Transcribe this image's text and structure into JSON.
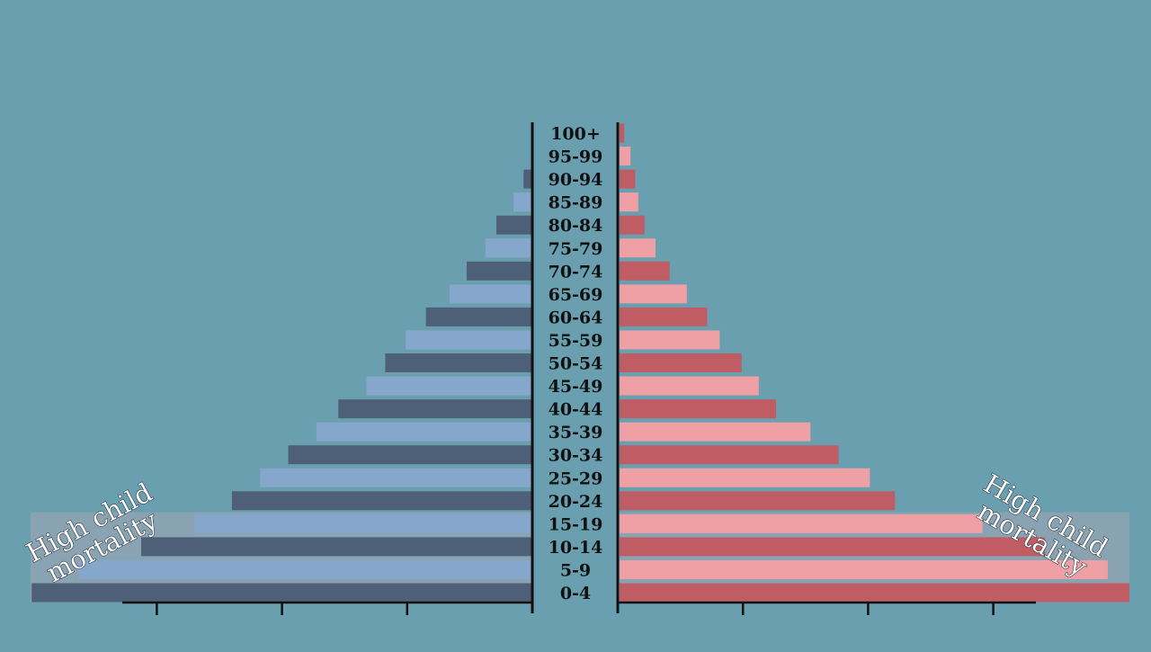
{
  "chart_data": {
    "type": "bar",
    "orientation": "horizontal",
    "layout": "population-pyramid",
    "title": "",
    "xlabel": "",
    "ylabel": "",
    "categories": [
      "0-4",
      "5-9",
      "10-14",
      "15-19",
      "20-24",
      "25-29",
      "30-34",
      "35-39",
      "40-44",
      "45-49",
      "50-54",
      "55-59",
      "60-64",
      "65-69",
      "70-74",
      "75-79",
      "80-84",
      "85-89",
      "90-94",
      "95-99",
      "100+"
    ],
    "series": [
      {
        "side": "left",
        "colors": [
          "#4e5f78",
          "#86a7cc"
        ],
        "values": [
          16.0,
          14.5,
          12.5,
          10.8,
          9.6,
          8.7,
          7.8,
          6.9,
          6.2,
          5.3,
          4.7,
          4.05,
          3.4,
          2.65,
          2.1,
          1.5,
          1.15,
          0.6,
          0.28,
          0.0,
          0.0
        ]
      },
      {
        "side": "right",
        "colors": [
          "#c05c64",
          "#eea0a4"
        ],
        "values": [
          18.0,
          15.6,
          13.6,
          11.6,
          8.8,
          8.0,
          7.0,
          6.1,
          5.0,
          4.45,
          3.9,
          3.2,
          2.8,
          2.15,
          1.6,
          1.15,
          0.8,
          0.6,
          0.5,
          0.35,
          0.15
        ]
      }
    ],
    "xlim": [
      0,
      16
    ],
    "xticks": [
      4,
      8,
      12
    ],
    "grid": false,
    "legend": "none"
  },
  "annotations": {
    "left": [
      "High child",
      "mortality"
    ],
    "right": [
      "High child",
      "mortality"
    ],
    "highlight_color": "#8fa3b3",
    "highlight_rows": [
      "0-4",
      "5-9",
      "10-14",
      "15-19"
    ]
  }
}
